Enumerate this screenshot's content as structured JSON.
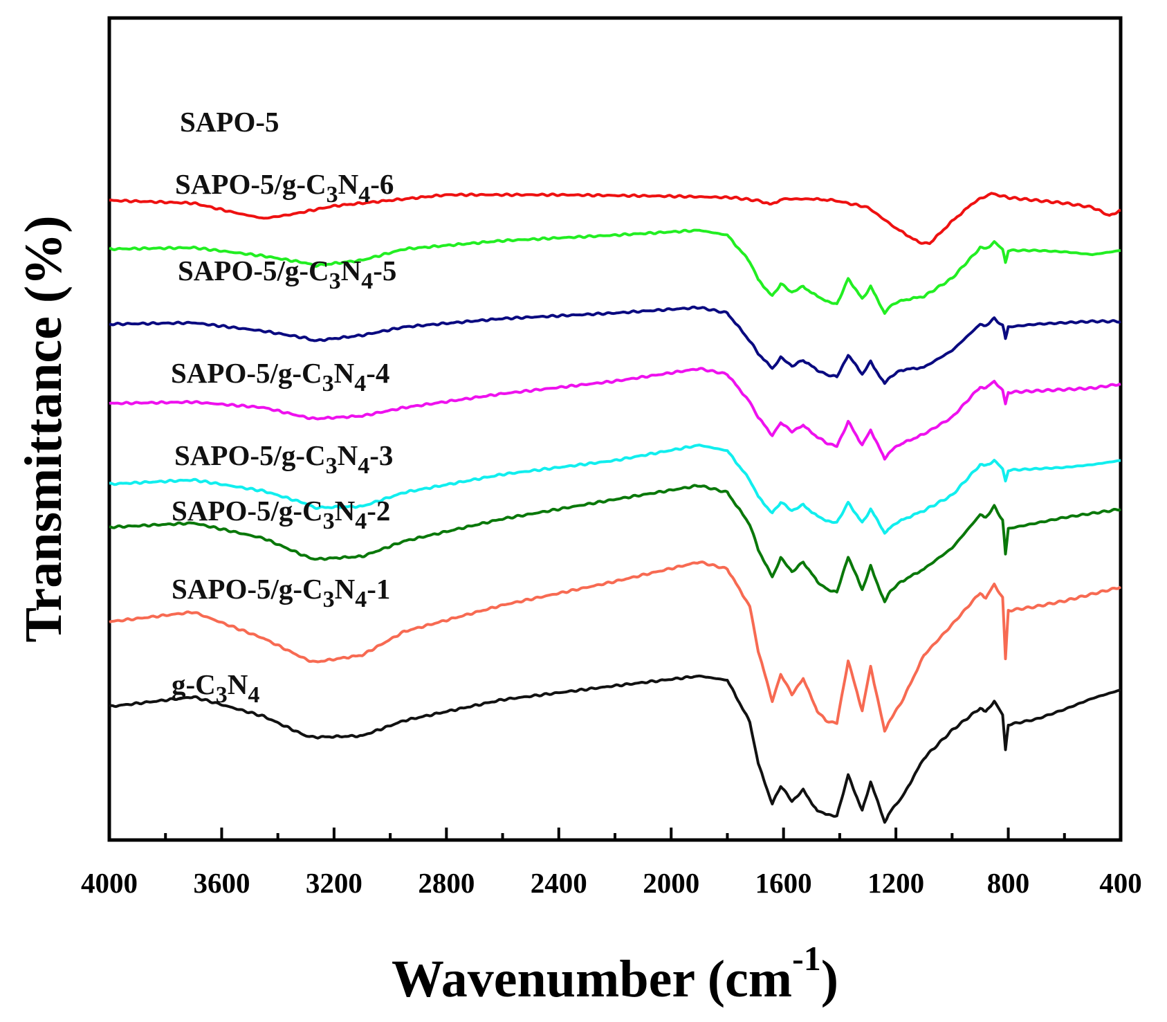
{
  "chart_data": {
    "type": "line",
    "title": "",
    "xlabel": "Wavenumber (cm",
    "xlabel_sup": "-1",
    "xlabel_close": ")",
    "ylabel": "Transmittance (%)",
    "xlim": [
      4000,
      400
    ],
    "x_reversed": true,
    "ylim": [
      0,
      100
    ],
    "y_ticks_labeled": false,
    "grid": false,
    "x_ticks": [
      4000,
      3600,
      3200,
      2800,
      2400,
      2000,
      1600,
      1200,
      800,
      400
    ],
    "x_tick_labels": [
      "4000",
      "3600",
      "3200",
      "2800",
      "2400",
      "2000",
      "1600",
      "1200",
      "800",
      "400"
    ],
    "series": [
      {
        "name": "SAPO-5",
        "label_parts": [
          "SAPO-5"
        ],
        "color": "#ee1111",
        "x": [
          4000,
          3700,
          3550,
          3450,
          3350,
          3200,
          3000,
          2800,
          2400,
          2000,
          1780,
          1680,
          1650,
          1600,
          1500,
          1420,
          1300,
          1200,
          1120,
          1080,
          1000,
          920,
          860,
          800,
          700,
          600,
          500,
          440,
          400
        ],
        "values": [
          88.6,
          88.2,
          86.8,
          86.0,
          86.6,
          87.8,
          88.6,
          89.4,
          89.4,
          89.2,
          89.0,
          88.5,
          88.0,
          88.8,
          88.8,
          88.6,
          87.6,
          84.6,
          82.6,
          82.4,
          85.6,
          88.4,
          89.6,
          89.0,
          88.6,
          88.2,
          87.6,
          86.4,
          87.2
        ]
      },
      {
        "name": "SAPO-5/g-C3N4-6",
        "label_parts": [
          "SAPO-5/g-C",
          "3",
          "N",
          "4",
          "-6"
        ],
        "color": "#22ee22",
        "x": [
          4000,
          3700,
          3450,
          3300,
          3270,
          3100,
          2950,
          2600,
          2200,
          1900,
          1800,
          1720,
          1690,
          1640,
          1610,
          1570,
          1530,
          1480,
          1450,
          1410,
          1370,
          1320,
          1290,
          1240,
          1220,
          1180,
          1100,
          1000,
          900,
          880,
          850,
          820,
          810,
          800,
          700,
          600,
          500,
          400
        ],
        "values": [
          81.6,
          81.8,
          80.6,
          79.6,
          79.2,
          80.0,
          81.6,
          82.8,
          83.6,
          84.3,
          83.6,
          79.8,
          77.2,
          74.8,
          76.6,
          75.4,
          76.2,
          74.8,
          74.2,
          73.6,
          77.4,
          74.4,
          76.2,
          72.4,
          73.4,
          74.2,
          74.8,
          77.4,
          81.8,
          81.6,
          82.6,
          81.6,
          79.6,
          81.4,
          81.4,
          81.2,
          80.8,
          81.4
        ]
      },
      {
        "name": "SAPO-5/g-C3N4-5",
        "label_parts": [
          "SAPO-5/g-C",
          "3",
          "N",
          "4",
          "-5"
        ],
        "color": "#0a0a80",
        "x": [
          4000,
          3700,
          3450,
          3300,
          3270,
          3100,
          2950,
          2600,
          2200,
          1900,
          1800,
          1720,
          1690,
          1640,
          1610,
          1570,
          1530,
          1480,
          1450,
          1410,
          1370,
          1320,
          1290,
          1240,
          1220,
          1180,
          1100,
          1000,
          900,
          880,
          850,
          820,
          810,
          800,
          700,
          600,
          500,
          400
        ],
        "values": [
          70.8,
          71.0,
          69.8,
          68.8,
          68.4,
          69.2,
          70.4,
          71.6,
          72.4,
          73.2,
          72.4,
          68.4,
          66.6,
          64.4,
          66.0,
          64.8,
          65.6,
          64.2,
          63.6,
          63.2,
          66.4,
          63.6,
          65.4,
          62.2,
          63.2,
          64.2,
          64.6,
          67.0,
          70.8,
          70.6,
          71.6,
          70.6,
          68.8,
          70.4,
          70.8,
          71.0,
          71.2,
          71.2
        ]
      },
      {
        "name": "SAPO-5/g-C3N4-4",
        "label_parts": [
          "SAPO-5/g-C",
          "3",
          "N",
          "4",
          "-4"
        ],
        "color": "#ee11ee",
        "x": [
          4000,
          3700,
          3450,
          3300,
          3270,
          3100,
          2950,
          2600,
          2200,
          1900,
          1800,
          1720,
          1690,
          1640,
          1610,
          1570,
          1530,
          1480,
          1450,
          1410,
          1370,
          1320,
          1290,
          1240,
          1220,
          1180,
          1100,
          1000,
          900,
          880,
          850,
          820,
          810,
          800,
          700,
          600,
          500,
          400
        ],
        "values": [
          59.4,
          59.6,
          58.8,
          57.4,
          57.2,
          57.6,
          58.8,
          60.8,
          62.6,
          64.4,
          63.6,
          59.6,
          57.4,
          54.8,
          56.6,
          55.4,
          56.2,
          54.6,
          53.8,
          53.2,
          56.8,
          53.4,
          55.6,
          51.4,
          52.6,
          53.6,
          55.0,
          57.4,
          61.8,
          61.6,
          62.6,
          61.2,
          59.4,
          61.0,
          61.2,
          61.4,
          61.6,
          62.2
        ]
      },
      {
        "name": "SAPO-5/g-C3N4-3",
        "label_parts": [
          "SAPO-5/g-C",
          "3",
          "N",
          "4",
          "-3"
        ],
        "color": "#11eeee",
        "x": [
          4000,
          3700,
          3450,
          3300,
          3270,
          3100,
          2950,
          2600,
          2200,
          1900,
          1800,
          1720,
          1690,
          1640,
          1610,
          1570,
          1530,
          1480,
          1450,
          1410,
          1370,
          1320,
          1290,
          1240,
          1220,
          1180,
          1100,
          1000,
          900,
          880,
          850,
          820,
          810,
          800,
          700,
          600,
          500,
          400
        ],
        "values": [
          47.8,
          48.4,
          46.8,
          45.0,
          44.4,
          44.6,
          46.6,
          49.2,
          51.2,
          53.4,
          52.6,
          48.4,
          46.0,
          43.6,
          45.2,
          44.0,
          44.8,
          43.2,
          42.6,
          42.2,
          45.2,
          42.2,
          44.2,
          40.8,
          41.6,
          42.6,
          44.0,
          46.2,
          50.6,
          50.4,
          51.2,
          50.0,
          48.2,
          49.8,
          50.0,
          50.2,
          50.6,
          51.2
        ]
      },
      {
        "name": "SAPO-5/g-C3N4-2",
        "label_parts": [
          "SAPO-5/g-C",
          "3",
          "N",
          "4",
          "-2"
        ],
        "color": "#0a780a",
        "x": [
          4000,
          3700,
          3450,
          3300,
          3270,
          3100,
          2950,
          2600,
          2200,
          1900,
          1800,
          1720,
          1690,
          1640,
          1610,
          1570,
          1530,
          1480,
          1450,
          1410,
          1370,
          1320,
          1290,
          1240,
          1220,
          1180,
          1100,
          1000,
          900,
          880,
          850,
          820,
          810,
          800,
          700,
          600,
          500,
          400
        ],
        "values": [
          41.6,
          42.2,
          40.0,
          37.4,
          37.0,
          37.4,
          39.6,
          42.8,
          45.6,
          47.6,
          46.6,
          42.0,
          38.4,
          34.4,
          37.2,
          35.2,
          36.6,
          33.8,
          32.8,
          32.2,
          37.4,
          32.6,
          36.0,
          30.8,
          32.4,
          33.8,
          35.6,
          38.6,
          43.4,
          43.0,
          44.6,
          42.6,
          37.8,
          41.4,
          42.2,
          43.0,
          43.6,
          44.2
        ]
      },
      {
        "name": "SAPO-5/g-C3N4-1",
        "label_parts": [
          "SAPO-5/g-C",
          "3",
          "N",
          "4",
          "-1"
        ],
        "color": "#f76a52",
        "x": [
          4000,
          3700,
          3450,
          3300,
          3270,
          3100,
          2950,
          2600,
          2200,
          1900,
          1800,
          1720,
          1690,
          1640,
          1610,
          1570,
          1530,
          1480,
          1450,
          1410,
          1370,
          1320,
          1290,
          1240,
          1220,
          1180,
          1100,
          1000,
          900,
          880,
          850,
          820,
          810,
          800,
          700,
          600,
          500,
          400
        ],
        "values": [
          28.0,
          29.4,
          25.6,
          22.6,
          22.2,
          23.2,
          26.6,
          30.4,
          33.8,
          36.6,
          35.6,
          30.2,
          23.8,
          16.6,
          20.4,
          17.6,
          19.8,
          15.2,
          13.8,
          13.4,
          22.4,
          15.2,
          21.6,
          12.2,
          14.0,
          16.4,
          23.2,
          27.6,
          32.2,
          31.4,
          33.4,
          31.4,
          22.8,
          29.6,
          30.2,
          31.0,
          32.0,
          33.0
        ]
      },
      {
        "name": "g-C3N4",
        "label_parts": [
          "g-C",
          "3",
          "N",
          "4",
          ""
        ],
        "color": "#111111",
        "x": [
          4000,
          3700,
          3450,
          3300,
          3270,
          3100,
          2950,
          2600,
          2200,
          1900,
          1800,
          1720,
          1690,
          1640,
          1610,
          1570,
          1530,
          1480,
          1450,
          1410,
          1370,
          1320,
          1290,
          1240,
          1220,
          1180,
          1100,
          1000,
          900,
          880,
          850,
          820,
          810,
          800,
          700,
          600,
          500,
          400
        ],
        "values": [
          15.8,
          17.2,
          14.4,
          11.6,
          11.4,
          11.6,
          13.8,
          16.8,
          18.8,
          20.2,
          19.6,
          13.6,
          7.6,
          1.8,
          4.4,
          2.2,
          3.8,
          0.8,
          0.4,
          0.0,
          6.0,
          0.8,
          5.0,
          -0.8,
          0.8,
          2.6,
          8.4,
          12.4,
          15.6,
          15.0,
          16.6,
          14.6,
          9.6,
          13.2,
          14.0,
          15.4,
          17.0,
          18.2
        ]
      }
    ]
  }
}
